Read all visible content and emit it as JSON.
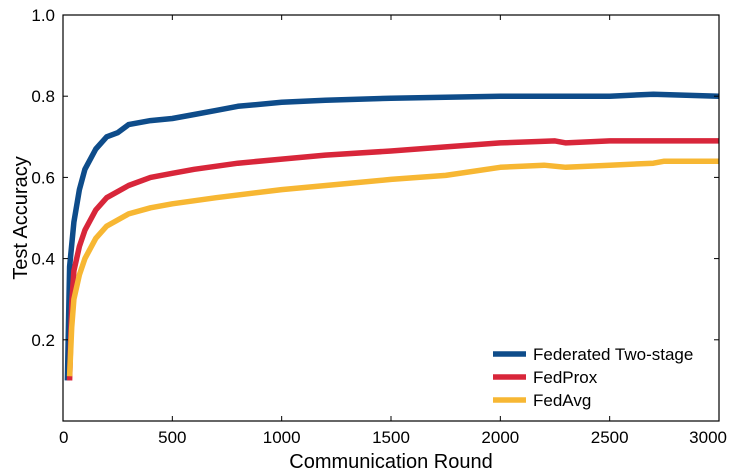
{
  "chart_data": {
    "type": "line",
    "xlabel": "Communication Round",
    "ylabel": "Test Accuracy",
    "xlim": [
      0,
      3000
    ],
    "ylim": [
      0.0,
      1.0
    ],
    "xticks": [
      0,
      500,
      1000,
      1500,
      2000,
      2500,
      3000
    ],
    "xtick_labels": [
      "0",
      "500",
      "1000",
      "1500",
      "2000",
      "2500",
      "3000"
    ],
    "yticks": [
      0.2,
      0.4,
      0.6,
      0.8,
      1.0
    ],
    "ytick_labels": [
      "0.2",
      "0.4",
      "0.6",
      "0.8",
      "1.0"
    ],
    "grid": false,
    "legend_position": "bottom-right",
    "series": [
      {
        "name": "Federated Two-stage",
        "color": "#0e4c8a",
        "x": [
          20,
          30,
          50,
          75,
          100,
          150,
          200,
          250,
          300,
          400,
          500,
          600,
          700,
          800,
          1000,
          1200,
          1500,
          2000,
          2500,
          2700,
          3000
        ],
        "y": [
          0.1,
          0.38,
          0.49,
          0.57,
          0.62,
          0.67,
          0.7,
          0.71,
          0.73,
          0.74,
          0.745,
          0.755,
          0.765,
          0.775,
          0.785,
          0.79,
          0.795,
          0.8,
          0.8,
          0.805,
          0.8
        ]
      },
      {
        "name": "FedProx",
        "color": "#d8263a",
        "x": [
          30,
          40,
          50,
          75,
          100,
          150,
          200,
          300,
          400,
          500,
          600,
          800,
          1000,
          1200,
          1500,
          1750,
          2000,
          2250,
          2300,
          2500,
          3000
        ],
        "y": [
          0.1,
          0.29,
          0.37,
          0.43,
          0.47,
          0.52,
          0.55,
          0.58,
          0.6,
          0.61,
          0.62,
          0.635,
          0.645,
          0.655,
          0.665,
          0.675,
          0.685,
          0.69,
          0.685,
          0.69,
          0.69
        ]
      },
      {
        "name": "FedAvg",
        "color": "#f7b733",
        "x": [
          30,
          40,
          50,
          75,
          100,
          150,
          200,
          300,
          400,
          500,
          700,
          1000,
          1300,
          1500,
          1750,
          2000,
          2200,
          2300,
          2500,
          2700,
          2750,
          3000
        ],
        "y": [
          0.11,
          0.23,
          0.3,
          0.36,
          0.4,
          0.45,
          0.48,
          0.51,
          0.525,
          0.535,
          0.55,
          0.57,
          0.585,
          0.595,
          0.605,
          0.625,
          0.63,
          0.625,
          0.63,
          0.635,
          0.64,
          0.64
        ]
      }
    ]
  }
}
